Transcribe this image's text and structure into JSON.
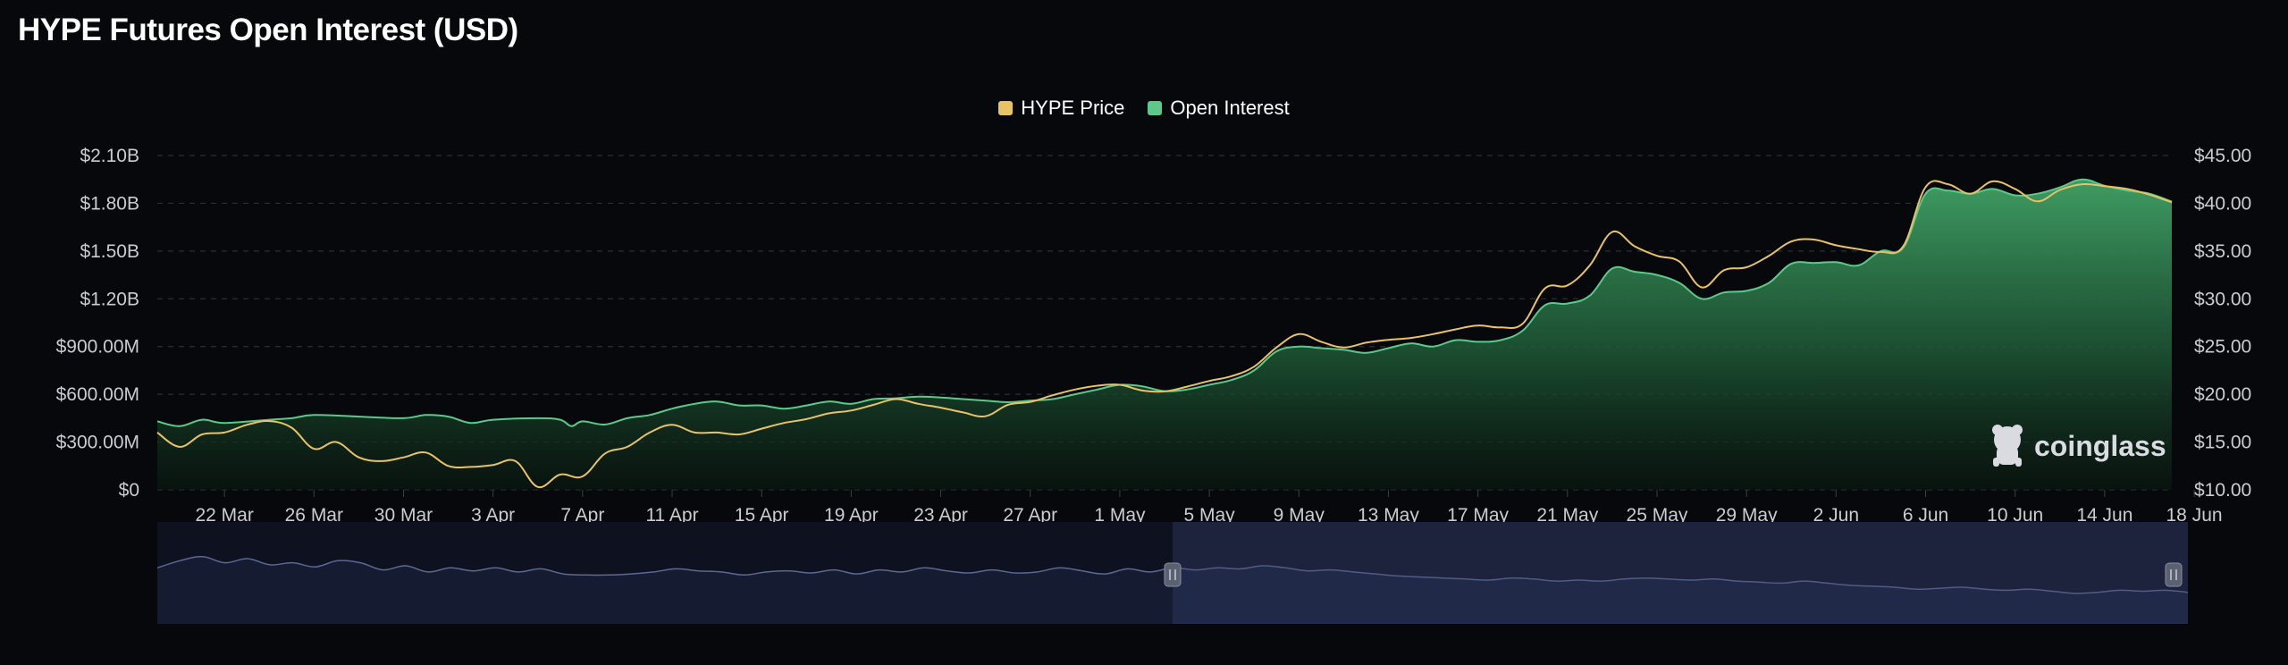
{
  "title": "HYPE Futures Open Interest (USD)",
  "watermark": "coinglass",
  "colors": {
    "price": "#e8c266",
    "oi": "#5cc98a",
    "oi_fill_top": "#3f9c62",
    "bg": "#06080b",
    "navigator_fill": "#2a3253",
    "navigator_line": "#5c6890",
    "grid": "#2a2e36"
  },
  "legend": [
    {
      "label": "HYPE Price",
      "color": "#e8c266"
    },
    {
      "label": "Open Interest",
      "color": "#5cc98a"
    }
  ],
  "chart_data": {
    "type": "area",
    "title": "HYPE Futures Open Interest (USD)",
    "x_ticks": [
      "22 Mar",
      "26 Mar",
      "30 Mar",
      "3 Apr",
      "7 Apr",
      "11 Apr",
      "15 Apr",
      "19 Apr",
      "23 Apr",
      "27 Apr",
      "1 May",
      "5 May",
      "9 May",
      "13 May",
      "17 May",
      "21 May",
      "25 May",
      "29 May",
      "2 Jun",
      "6 Jun",
      "10 Jun",
      "14 Jun",
      "18 Jun"
    ],
    "y_left": {
      "ticks": [
        "$0",
        "$300.00M",
        "$600.00M",
        "$900.00M",
        "$1.20B",
        "$1.50B",
        "$1.80B",
        "$2.10B"
      ],
      "range": [
        0,
        2100000000
      ]
    },
    "y_right": {
      "ticks": [
        "$10.00",
        "$15.00",
        "$20.00",
        "$25.00",
        "$30.00",
        "$35.00",
        "$40.00",
        "$45.00"
      ],
      "range": [
        10,
        45
      ]
    },
    "x_range_days": [
      0,
      90
    ],
    "grid": true,
    "legend_position": "top-center",
    "series": [
      {
        "name": "Open Interest",
        "axis": "left",
        "style": "area",
        "points": [
          [
            0,
            430
          ],
          [
            1,
            400
          ],
          [
            2,
            440
          ],
          [
            3,
            420
          ],
          [
            5,
            440
          ],
          [
            6,
            450
          ],
          [
            7,
            470
          ],
          [
            9,
            460
          ],
          [
            11,
            450
          ],
          [
            12,
            470
          ],
          [
            13,
            460
          ],
          [
            14,
            420
          ],
          [
            15,
            440
          ],
          [
            17,
            450
          ],
          [
            18,
            440
          ],
          [
            18.5,
            400
          ],
          [
            19,
            430
          ],
          [
            20,
            410
          ],
          [
            21,
            450
          ],
          [
            22,
            470
          ],
          [
            23,
            510
          ],
          [
            24,
            540
          ],
          [
            25,
            555
          ],
          [
            26,
            530
          ],
          [
            27,
            530
          ],
          [
            28,
            510
          ],
          [
            29,
            530
          ],
          [
            30,
            555
          ],
          [
            31,
            540
          ],
          [
            32,
            570
          ],
          [
            33,
            575
          ],
          [
            34,
            585
          ],
          [
            35,
            580
          ],
          [
            36,
            570
          ],
          [
            37,
            560
          ],
          [
            38,
            550
          ],
          [
            39,
            560
          ],
          [
            40,
            570
          ],
          [
            41,
            600
          ],
          [
            42,
            630
          ],
          [
            43,
            660
          ],
          [
            44,
            650
          ],
          [
            45,
            620
          ],
          [
            46,
            630
          ],
          [
            47,
            660
          ],
          [
            48,
            690
          ],
          [
            49,
            750
          ],
          [
            50,
            870
          ],
          [
            51,
            900
          ],
          [
            52,
            890
          ],
          [
            53,
            880
          ],
          [
            54,
            860
          ],
          [
            55,
            890
          ],
          [
            56,
            920
          ],
          [
            57,
            900
          ],
          [
            58,
            940
          ],
          [
            59,
            930
          ],
          [
            60,
            940
          ],
          [
            61,
            1000
          ],
          [
            62,
            1160
          ],
          [
            63,
            1170
          ],
          [
            64,
            1220
          ],
          [
            65,
            1390
          ],
          [
            66,
            1370
          ],
          [
            67,
            1350
          ],
          [
            68,
            1300
          ],
          [
            69,
            1200
          ],
          [
            70,
            1240
          ],
          [
            71,
            1250
          ],
          [
            72,
            1300
          ],
          [
            73,
            1420
          ],
          [
            74,
            1425
          ],
          [
            75,
            1430
          ],
          [
            76,
            1410
          ],
          [
            77,
            1500
          ],
          [
            78,
            1520
          ],
          [
            79,
            1860
          ],
          [
            80,
            1880
          ],
          [
            81,
            1860
          ],
          [
            82,
            1890
          ],
          [
            83,
            1850
          ],
          [
            84,
            1860
          ],
          [
            85,
            1900
          ],
          [
            86,
            1950
          ],
          [
            87,
            1910
          ],
          [
            88,
            1880
          ],
          [
            89,
            1860
          ],
          [
            90,
            1810
          ]
        ]
      },
      {
        "name": "HYPE Price",
        "axis": "right",
        "style": "line",
        "points": [
          [
            0,
            16.0
          ],
          [
            1,
            14.5
          ],
          [
            2,
            15.8
          ],
          [
            3,
            16.0
          ],
          [
            4,
            16.8
          ],
          [
            5,
            17.2
          ],
          [
            6,
            16.5
          ],
          [
            7,
            14.3
          ],
          [
            8,
            15.0
          ],
          [
            9,
            13.4
          ],
          [
            10,
            13.0
          ],
          [
            11,
            13.4
          ],
          [
            12,
            13.9
          ],
          [
            13,
            12.5
          ],
          [
            14,
            12.4
          ],
          [
            15,
            12.6
          ],
          [
            16,
            13.0
          ],
          [
            17,
            10.3
          ],
          [
            18,
            11.6
          ],
          [
            19,
            11.4
          ],
          [
            20,
            13.8
          ],
          [
            21,
            14.5
          ],
          [
            22,
            16.0
          ],
          [
            23,
            16.8
          ],
          [
            24,
            16.0
          ],
          [
            25,
            16.0
          ],
          [
            26,
            15.8
          ],
          [
            27,
            16.4
          ],
          [
            28,
            17.0
          ],
          [
            29,
            17.4
          ],
          [
            30,
            18.0
          ],
          [
            31,
            18.3
          ],
          [
            32,
            18.9
          ],
          [
            33,
            19.5
          ],
          [
            34,
            19.0
          ],
          [
            35,
            18.6
          ],
          [
            36,
            18.1
          ],
          [
            37,
            17.7
          ],
          [
            38,
            18.9
          ],
          [
            39,
            19.2
          ],
          [
            40,
            19.9
          ],
          [
            41,
            20.5
          ],
          [
            42,
            20.9
          ],
          [
            43,
            21.0
          ],
          [
            44,
            20.4
          ],
          [
            45,
            20.3
          ],
          [
            46,
            20.8
          ],
          [
            47,
            21.4
          ],
          [
            48,
            21.9
          ],
          [
            49,
            22.9
          ],
          [
            50,
            24.9
          ],
          [
            51,
            26.3
          ],
          [
            52,
            25.5
          ],
          [
            53,
            24.9
          ],
          [
            54,
            25.4
          ],
          [
            55,
            25.7
          ],
          [
            56,
            25.9
          ],
          [
            57,
            26.3
          ],
          [
            58,
            26.8
          ],
          [
            59,
            27.2
          ],
          [
            60,
            27.0
          ],
          [
            61,
            27.4
          ],
          [
            62,
            31.1
          ],
          [
            63,
            31.4
          ],
          [
            64,
            33.5
          ],
          [
            65,
            37.0
          ],
          [
            66,
            35.5
          ],
          [
            67,
            34.5
          ],
          [
            68,
            33.9
          ],
          [
            69,
            31.2
          ],
          [
            70,
            33.0
          ],
          [
            71,
            33.3
          ],
          [
            72,
            34.5
          ],
          [
            73,
            36.0
          ],
          [
            74,
            36.2
          ],
          [
            75,
            35.6
          ],
          [
            76,
            35.2
          ],
          [
            77,
            34.9
          ],
          [
            78,
            35.5
          ],
          [
            79,
            41.7
          ],
          [
            80,
            42.0
          ],
          [
            81,
            41.0
          ],
          [
            82,
            42.3
          ],
          [
            83,
            41.5
          ],
          [
            84,
            40.2
          ],
          [
            85,
            41.4
          ],
          [
            86,
            42.0
          ],
          [
            87,
            41.8
          ],
          [
            88,
            41.5
          ],
          [
            89,
            40.9
          ],
          [
            90,
            40.1
          ]
        ]
      }
    ],
    "navigator": {
      "selected_range_days": [
        45,
        90
      ],
      "points": [
        [
          0,
          55
        ],
        [
          1,
          62
        ],
        [
          2,
          66
        ],
        [
          3,
          60
        ],
        [
          4,
          64
        ],
        [
          5,
          58
        ],
        [
          6,
          60
        ],
        [
          7,
          56
        ],
        [
          8,
          62
        ],
        [
          9,
          60
        ],
        [
          10,
          53
        ],
        [
          11,
          57
        ],
        [
          12,
          51
        ],
        [
          13,
          55
        ],
        [
          14,
          52
        ],
        [
          15,
          55
        ],
        [
          16,
          51
        ],
        [
          17,
          54
        ],
        [
          18,
          49
        ],
        [
          19,
          48
        ],
        [
          20,
          48
        ],
        [
          21,
          49
        ],
        [
          22,
          51
        ],
        [
          23,
          54
        ],
        [
          24,
          52
        ],
        [
          25,
          51
        ],
        [
          26,
          48
        ],
        [
          27,
          51
        ],
        [
          28,
          52
        ],
        [
          29,
          50
        ],
        [
          30,
          53
        ],
        [
          31,
          49
        ],
        [
          32,
          53
        ],
        [
          33,
          51
        ],
        [
          34,
          55
        ],
        [
          35,
          52
        ],
        [
          36,
          50
        ],
        [
          37,
          53
        ],
        [
          38,
          50
        ],
        [
          39,
          51
        ],
        [
          40,
          55
        ],
        [
          41,
          52
        ],
        [
          42,
          49
        ],
        [
          43,
          54
        ],
        [
          44,
          51
        ],
        [
          45,
          55
        ],
        [
          46,
          53
        ],
        [
          47,
          55
        ],
        [
          48,
          54
        ],
        [
          49,
          57
        ],
        [
          50,
          55
        ],
        [
          51,
          52
        ],
        [
          52,
          53
        ],
        [
          53,
          51
        ],
        [
          54,
          49
        ],
        [
          55,
          47
        ],
        [
          56,
          46
        ],
        [
          57,
          45
        ],
        [
          58,
          44
        ],
        [
          59,
          43
        ],
        [
          60,
          45
        ],
        [
          61,
          44
        ],
        [
          62,
          42
        ],
        [
          63,
          43
        ],
        [
          64,
          42
        ],
        [
          65,
          44
        ],
        [
          66,
          45
        ],
        [
          67,
          44
        ],
        [
          68,
          43
        ],
        [
          69,
          44
        ],
        [
          70,
          42
        ],
        [
          71,
          41
        ],
        [
          72,
          40
        ],
        [
          73,
          42
        ],
        [
          74,
          40
        ],
        [
          75,
          38
        ],
        [
          76,
          37
        ],
        [
          77,
          36
        ],
        [
          78,
          34
        ],
        [
          79,
          35
        ],
        [
          80,
          36
        ],
        [
          81,
          34
        ],
        [
          82,
          33
        ],
        [
          83,
          34
        ],
        [
          84,
          32
        ],
        [
          85,
          30
        ],
        [
          86,
          31
        ],
        [
          87,
          33
        ],
        [
          88,
          32
        ],
        [
          89,
          33
        ],
        [
          90,
          31
        ]
      ]
    }
  }
}
